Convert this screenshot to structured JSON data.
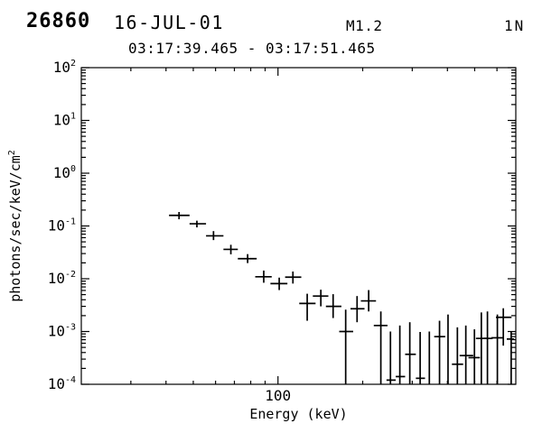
{
  "header": {
    "flare_number": "26860",
    "date": "16-JUL-01",
    "goes_class": "M1.2",
    "optical_class": "1N",
    "time_range": "03:17:39.465 - 03:17:51.465"
  },
  "colors": {
    "foreground": "#000000",
    "background": "#ffffff"
  },
  "chart_data": {
    "type": "scatter",
    "subtype": "photon-spectrum-with-error-bars",
    "xlabel": "Energy (keV)",
    "ylabel": "photons/sec/keV/cm",
    "ylabel_superscript": "2",
    "xscale": "log",
    "yscale": "log",
    "xlim": [
      20,
      700
    ],
    "ylim": [
      0.0001,
      100
    ],
    "grid": false,
    "legend": "none",
    "x_major_ticks": [
      {
        "value": 100,
        "label": "100"
      }
    ],
    "x_minor_ticks": [
      30,
      40,
      50,
      60,
      70,
      80,
      90,
      200,
      300,
      400,
      500,
      600
    ],
    "y_tick_exponents": [
      2,
      1,
      0,
      -1,
      -2,
      -3,
      -4
    ],
    "y_tick_base": "10",
    "marker": "cross (horizontal bar = energy bin width, vertical bar = flux uncertainty)",
    "points": [
      {
        "e_lo": 41,
        "e": 44.5,
        "e_hi": 48.5,
        "f_lo": 0.134,
        "f": 0.159,
        "f_hi": 0.184
      },
      {
        "e_lo": 48.5,
        "e": 51.5,
        "e_hi": 55.5,
        "f_lo": 0.094,
        "f": 0.11,
        "f_hi": 0.126
      },
      {
        "e_lo": 55.5,
        "e": 59,
        "e_hi": 64,
        "f_lo": 0.054,
        "f": 0.065,
        "f_hi": 0.08
      },
      {
        "e_lo": 64,
        "e": 68,
        "e_hi": 72,
        "f_lo": 0.029,
        "f": 0.036,
        "f_hi": 0.044
      },
      {
        "e_lo": 72,
        "e": 78,
        "e_hi": 84,
        "f_lo": 0.0198,
        "f": 0.024,
        "f_hi": 0.0293
      },
      {
        "e_lo": 83,
        "e": 89,
        "e_hi": 95,
        "f_lo": 0.0084,
        "f": 0.0109,
        "f_hi": 0.0143
      },
      {
        "e_lo": 94,
        "e": 101,
        "e_hi": 108,
        "f_lo": 0.0061,
        "f": 0.0081,
        "f_hi": 0.0105
      },
      {
        "e_lo": 106,
        "e": 113,
        "e_hi": 121,
        "f_lo": 0.0081,
        "f": 0.0107,
        "f_hi": 0.0137
      },
      {
        "e_lo": 119,
        "e": 127,
        "e_hi": 136,
        "f_lo": 0.0016,
        "f": 0.0034,
        "f_hi": 0.0052
      },
      {
        "e_lo": 133,
        "e": 142,
        "e_hi": 151,
        "f_lo": 0.003,
        "f": 0.0047,
        "f_hi": 0.0062
      },
      {
        "e_lo": 148,
        "e": 157,
        "e_hi": 168,
        "f_lo": 0.0018,
        "f": 0.003,
        "f_hi": 0.0051
      },
      {
        "e_lo": 165,
        "e": 174,
        "e_hi": 185,
        "f_lo": 5e-05,
        "f": 0.001,
        "f_hi": 0.0026
      },
      {
        "e_lo": 181,
        "e": 191,
        "e_hi": 203,
        "f_lo": 0.0015,
        "f": 0.0027,
        "f_hi": 0.0047
      },
      {
        "e_lo": 197,
        "e": 210,
        "e_hi": 223,
        "f_lo": 0.0024,
        "f": 0.0038,
        "f_hi": 0.0061
      },
      {
        "e_lo": 219,
        "e": 232,
        "e_hi": 245,
        "f_lo": 5e-05,
        "f": 0.0013,
        "f_hi": 0.0024
      },
      {
        "e_lo": 243,
        "e": 251,
        "e_hi": 262,
        "f_lo": 5e-05,
        "f": 0.00012,
        "f_hi": 0.001
      },
      {
        "e_lo": 262,
        "e": 271,
        "e_hi": 283,
        "f_lo": 5e-05,
        "f": 0.00014,
        "f_hi": 0.0013
      },
      {
        "e_lo": 283,
        "e": 294,
        "e_hi": 309,
        "f_lo": 5e-05,
        "f": 0.00037,
        "f_hi": 0.0015
      },
      {
        "e_lo": 309,
        "e": 320,
        "e_hi": 333,
        "f_lo": 5e-05,
        "f": 0.00013,
        "f_hi": 0.00098
      },
      {
        "e_lo": 333,
        "e": 345,
        "e_hi": 359,
        "f_lo": 5e-05,
        "f": 9e-05,
        "f_hi": 0.001
      },
      {
        "e_lo": 359,
        "e": 375,
        "e_hi": 393,
        "f_lo": 5e-05,
        "f": 0.0008,
        "f_hi": 0.0016
      },
      {
        "e_lo": 393,
        "e": 402,
        "e_hi": 417,
        "f_lo": 5e-05,
        "f": 9e-05,
        "f_hi": 0.0021
      },
      {
        "e_lo": 415,
        "e": 434,
        "e_hi": 455,
        "f_lo": 5e-05,
        "f": 0.00024,
        "f_hi": 0.0012
      },
      {
        "e_lo": 442,
        "e": 465,
        "e_hi": 494,
        "f_lo": 5e-05,
        "f": 0.00035,
        "f_hi": 0.0013
      },
      {
        "e_lo": 475,
        "e": 499,
        "e_hi": 522,
        "f_lo": 5e-05,
        "f": 0.00032,
        "f_hi": 0.0011
      },
      {
        "e_lo": 505,
        "e": 528,
        "e_hi": 552,
        "f_lo": 5e-05,
        "f": 0.00074,
        "f_hi": 0.0023
      },
      {
        "e_lo": 538,
        "e": 555,
        "e_hi": 579,
        "f_lo": 5e-05,
        "f": 0.00074,
        "f_hi": 0.0024
      },
      {
        "e_lo": 573,
        "e": 602,
        "e_hi": 630,
        "f_lo": 5e-05,
        "f": 0.00076,
        "f_hi": 0.0021
      },
      {
        "e_lo": 595,
        "e": 632,
        "e_hi": 676,
        "f_lo": 0.00054,
        "f": 0.00186,
        "f_hi": 0.00276
      },
      {
        "e_lo": 650,
        "e": 674,
        "e_hi": 690,
        "f_lo": 5e-05,
        "f": 0.00072,
        "f_hi": 0.00098
      }
    ]
  }
}
